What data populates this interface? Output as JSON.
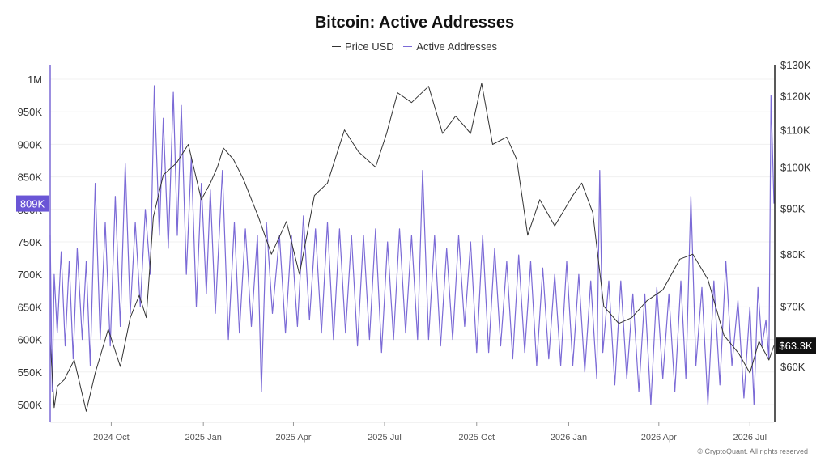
{
  "title": "Bitcoin: Active Addresses",
  "legend": [
    {
      "label": "Price USD",
      "color": "#333333"
    },
    {
      "label": "Active Addresses",
      "color": "#7b6ad6"
    }
  ],
  "badges": {
    "left": "809K",
    "right": "$63.3K"
  },
  "copyright": "© CryptoQuant. All rights reserved",
  "chart_data": {
    "type": "line",
    "title": "Bitcoin: Active Addresses",
    "x_axis": {
      "type": "date",
      "range": [
        "2024-08-01",
        "2026-07-25"
      ],
      "ticks": [
        "2024 Oct",
        "2025 Jan",
        "2025 Apr",
        "2025 Jul",
        "2025 Oct",
        "2026 Jan",
        "2026 Apr",
        "2026 Jul"
      ]
    },
    "y_left": {
      "label": "",
      "range": [
        480000,
        1000000
      ],
      "ticks": [
        "1M",
        "950K",
        "900K",
        "850K",
        "800K",
        "750K",
        "700K",
        "650K",
        "600K",
        "550K",
        "500K"
      ]
    },
    "y_right": {
      "label": "",
      "scale": "log",
      "range": [
        48000,
        130000
      ],
      "ticks": [
        "$130K",
        "$120K",
        "$110K",
        "$100K",
        "$90K",
        "$80K",
        "$70K",
        "$60K"
      ]
    },
    "grid": true,
    "legend_position": "top-center",
    "series": [
      {
        "name": "Price USD",
        "axis": "right",
        "color": "#333333",
        "points": [
          [
            "2024-08-01",
            64000
          ],
          [
            "2024-08-05",
            54000
          ],
          [
            "2024-08-08",
            57000
          ],
          [
            "2024-08-15",
            58000
          ],
          [
            "2024-08-25",
            61000
          ],
          [
            "2024-09-06",
            53500
          ],
          [
            "2024-09-15",
            59000
          ],
          [
            "2024-09-28",
            66000
          ],
          [
            "2024-10-10",
            60000
          ],
          [
            "2024-10-20",
            68000
          ],
          [
            "2024-10-29",
            72000
          ],
          [
            "2024-11-05",
            68000
          ],
          [
            "2024-11-12",
            88000
          ],
          [
            "2024-11-22",
            98000
          ],
          [
            "2024-12-05",
            101000
          ],
          [
            "2024-12-17",
            106000
          ],
          [
            "2024-12-30",
            92000
          ],
          [
            "2025-01-08",
            96000
          ],
          [
            "2025-01-15",
            100000
          ],
          [
            "2025-01-21",
            105000
          ],
          [
            "2025-01-31",
            102000
          ],
          [
            "2025-02-10",
            97000
          ],
          [
            "2025-02-25",
            88000
          ],
          [
            "2025-03-10",
            80000
          ],
          [
            "2025-03-25",
            87000
          ],
          [
            "2025-04-07",
            76000
          ],
          [
            "2025-04-22",
            93000
          ],
          [
            "2025-05-05",
            96000
          ],
          [
            "2025-05-22",
            110000
          ],
          [
            "2025-06-05",
            104000
          ],
          [
            "2025-06-22",
            100000
          ],
          [
            "2025-07-03",
            109000
          ],
          [
            "2025-07-14",
            121000
          ],
          [
            "2025-07-28",
            118000
          ],
          [
            "2025-08-14",
            123000
          ],
          [
            "2025-08-28",
            109000
          ],
          [
            "2025-09-10",
            114000
          ],
          [
            "2025-09-25",
            109000
          ],
          [
            "2025-10-06",
            124000
          ],
          [
            "2025-10-17",
            106000
          ],
          [
            "2025-10-31",
            108000
          ],
          [
            "2025-11-10",
            102000
          ],
          [
            "2025-11-21",
            84000
          ],
          [
            "2025-12-03",
            92000
          ],
          [
            "2025-12-18",
            86000
          ],
          [
            "2026-01-05",
            93000
          ],
          [
            "2026-01-14",
            96000
          ],
          [
            "2026-01-25",
            89000
          ],
          [
            "2026-02-05",
            70000
          ],
          [
            "2026-02-20",
            67000
          ],
          [
            "2026-03-05",
            68000
          ],
          [
            "2026-03-20",
            71000
          ],
          [
            "2026-04-05",
            73000
          ],
          [
            "2026-04-22",
            79000
          ],
          [
            "2026-05-05",
            80000
          ],
          [
            "2026-05-20",
            75000
          ],
          [
            "2026-06-05",
            65000
          ],
          [
            "2026-06-20",
            62000
          ],
          [
            "2026-07-01",
            59000
          ],
          [
            "2026-07-10",
            64000
          ],
          [
            "2026-07-20",
            61000
          ],
          [
            "2026-07-25",
            63300
          ]
        ]
      },
      {
        "name": "Active Addresses",
        "axis": "left",
        "color": "#7b6ad6",
        "points": [
          [
            "2024-08-01",
            760000
          ],
          [
            "2024-08-03",
            520000
          ],
          [
            "2024-08-05",
            700000
          ],
          [
            "2024-08-08",
            610000
          ],
          [
            "2024-08-12",
            735000
          ],
          [
            "2024-08-16",
            590000
          ],
          [
            "2024-08-20",
            720000
          ],
          [
            "2024-08-24",
            570000
          ],
          [
            "2024-08-28",
            740000
          ],
          [
            "2024-09-02",
            600000
          ],
          [
            "2024-09-06",
            720000
          ],
          [
            "2024-09-10",
            560000
          ],
          [
            "2024-09-15",
            840000
          ],
          [
            "2024-09-20",
            600000
          ],
          [
            "2024-09-25",
            780000
          ],
          [
            "2024-09-30",
            590000
          ],
          [
            "2024-10-05",
            820000
          ],
          [
            "2024-10-10",
            620000
          ],
          [
            "2024-10-15",
            870000
          ],
          [
            "2024-10-20",
            640000
          ],
          [
            "2024-10-25",
            780000
          ],
          [
            "2024-10-30",
            650000
          ],
          [
            "2024-11-04",
            800000
          ],
          [
            "2024-11-09",
            700000
          ],
          [
            "2024-11-13",
            990000
          ],
          [
            "2024-11-18",
            760000
          ],
          [
            "2024-11-22",
            940000
          ],
          [
            "2024-11-27",
            740000
          ],
          [
            "2024-12-02",
            980000
          ],
          [
            "2024-12-06",
            760000
          ],
          [
            "2024-12-10",
            960000
          ],
          [
            "2024-12-15",
            700000
          ],
          [
            "2024-12-20",
            880000
          ],
          [
            "2024-12-25",
            650000
          ],
          [
            "2024-12-30",
            840000
          ],
          [
            "2025-01-04",
            670000
          ],
          [
            "2025-01-08",
            830000
          ],
          [
            "2025-01-13",
            640000
          ],
          [
            "2025-01-20",
            860000
          ],
          [
            "2025-01-26",
            600000
          ],
          [
            "2025-02-01",
            780000
          ],
          [
            "2025-02-06",
            610000
          ],
          [
            "2025-02-12",
            770000
          ],
          [
            "2025-02-18",
            620000
          ],
          [
            "2025-02-24",
            760000
          ],
          [
            "2025-02-28",
            520000
          ],
          [
            "2025-03-05",
            780000
          ],
          [
            "2025-03-11",
            640000
          ],
          [
            "2025-03-18",
            760000
          ],
          [
            "2025-03-24",
            610000
          ],
          [
            "2025-03-30",
            760000
          ],
          [
            "2025-04-05",
            620000
          ],
          [
            "2025-04-11",
            790000
          ],
          [
            "2025-04-17",
            630000
          ],
          [
            "2025-04-23",
            770000
          ],
          [
            "2025-04-29",
            610000
          ],
          [
            "2025-05-05",
            780000
          ],
          [
            "2025-05-11",
            600000
          ],
          [
            "2025-05-17",
            770000
          ],
          [
            "2025-05-23",
            610000
          ],
          [
            "2025-05-29",
            760000
          ],
          [
            "2025-06-04",
            590000
          ],
          [
            "2025-06-10",
            760000
          ],
          [
            "2025-06-16",
            600000
          ],
          [
            "2025-06-22",
            770000
          ],
          [
            "2025-06-28",
            580000
          ],
          [
            "2025-07-04",
            750000
          ],
          [
            "2025-07-10",
            600000
          ],
          [
            "2025-07-16",
            770000
          ],
          [
            "2025-07-22",
            610000
          ],
          [
            "2025-07-28",
            760000
          ],
          [
            "2025-08-03",
            600000
          ],
          [
            "2025-08-08",
            860000
          ],
          [
            "2025-08-14",
            600000
          ],
          [
            "2025-08-20",
            760000
          ],
          [
            "2025-08-26",
            590000
          ],
          [
            "2025-09-01",
            740000
          ],
          [
            "2025-09-07",
            600000
          ],
          [
            "2025-09-13",
            760000
          ],
          [
            "2025-09-19",
            620000
          ],
          [
            "2025-09-25",
            750000
          ],
          [
            "2025-10-01",
            580000
          ],
          [
            "2025-10-07",
            760000
          ],
          [
            "2025-10-13",
            580000
          ],
          [
            "2025-10-19",
            740000
          ],
          [
            "2025-10-25",
            590000
          ],
          [
            "2025-10-31",
            720000
          ],
          [
            "2025-11-06",
            570000
          ],
          [
            "2025-11-12",
            730000
          ],
          [
            "2025-11-18",
            580000
          ],
          [
            "2025-11-24",
            720000
          ],
          [
            "2025-11-30",
            560000
          ],
          [
            "2025-12-06",
            710000
          ],
          [
            "2025-12-12",
            570000
          ],
          [
            "2025-12-18",
            700000
          ],
          [
            "2025-12-24",
            560000
          ],
          [
            "2025-12-30",
            720000
          ],
          [
            "2026-01-05",
            560000
          ],
          [
            "2026-01-11",
            700000
          ],
          [
            "2026-01-17",
            550000
          ],
          [
            "2026-01-23",
            690000
          ],
          [
            "2026-01-29",
            540000
          ],
          [
            "2026-02-01",
            860000
          ],
          [
            "2026-02-04",
            580000
          ],
          [
            "2026-02-10",
            690000
          ],
          [
            "2026-02-16",
            530000
          ],
          [
            "2026-02-22",
            690000
          ],
          [
            "2026-02-28",
            540000
          ],
          [
            "2026-03-06",
            670000
          ],
          [
            "2026-03-12",
            520000
          ],
          [
            "2026-03-18",
            670000
          ],
          [
            "2026-03-24",
            500000
          ],
          [
            "2026-03-30",
            680000
          ],
          [
            "2026-04-05",
            540000
          ],
          [
            "2026-04-11",
            670000
          ],
          [
            "2026-04-17",
            520000
          ],
          [
            "2026-04-23",
            690000
          ],
          [
            "2026-04-28",
            540000
          ],
          [
            "2026-05-03",
            820000
          ],
          [
            "2026-05-08",
            560000
          ],
          [
            "2026-05-14",
            680000
          ],
          [
            "2026-05-20",
            500000
          ],
          [
            "2026-05-26",
            690000
          ],
          [
            "2026-06-01",
            530000
          ],
          [
            "2026-06-07",
            720000
          ],
          [
            "2026-06-13",
            560000
          ],
          [
            "2026-06-19",
            660000
          ],
          [
            "2026-06-25",
            510000
          ],
          [
            "2026-07-01",
            650000
          ],
          [
            "2026-07-05",
            500000
          ],
          [
            "2026-07-09",
            680000
          ],
          [
            "2026-07-13",
            590000
          ],
          [
            "2026-07-17",
            630000
          ],
          [
            "2026-07-20",
            570000
          ],
          [
            "2026-07-22",
            975000
          ],
          [
            "2026-07-25",
            809000
          ]
        ]
      }
    ]
  }
}
